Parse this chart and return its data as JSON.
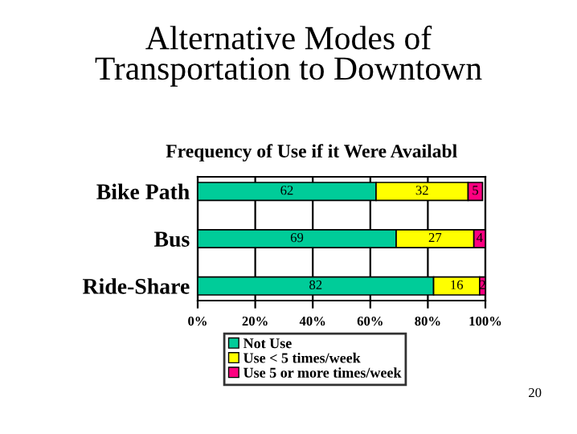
{
  "chart_data": {
    "type": "bar",
    "orientation": "horizontal",
    "stacked": true,
    "title": "Alternative Modes of\nTransportation to Downtown",
    "subtitle": "Frequency of Use if it Were Availabl",
    "categories": [
      "Bike Path",
      "Bus",
      "Ride-Share"
    ],
    "series": [
      {
        "name": "Not Use",
        "color": "#00cc99",
        "values": [
          62,
          69,
          82
        ]
      },
      {
        "name": "Use < 5 times/week",
        "color": "#ffff00",
        "values": [
          32,
          27,
          16
        ]
      },
      {
        "name": "Use 5 or more times/week",
        "color": "#ff0080",
        "values": [
          5,
          4,
          2
        ]
      }
    ],
    "xlim": [
      0,
      100
    ],
    "xticks": [
      {
        "value": 0,
        "label": "0%"
      },
      {
        "value": 20,
        "label": "20%"
      },
      {
        "value": 40,
        "label": "40%"
      },
      {
        "value": 60,
        "label": "60%"
      },
      {
        "value": 80,
        "label": "80%"
      },
      {
        "value": 100,
        "label": "100%"
      }
    ],
    "grid": "x",
    "legend": "bottom",
    "data_labels": true,
    "annotations": [
      "20"
    ]
  }
}
